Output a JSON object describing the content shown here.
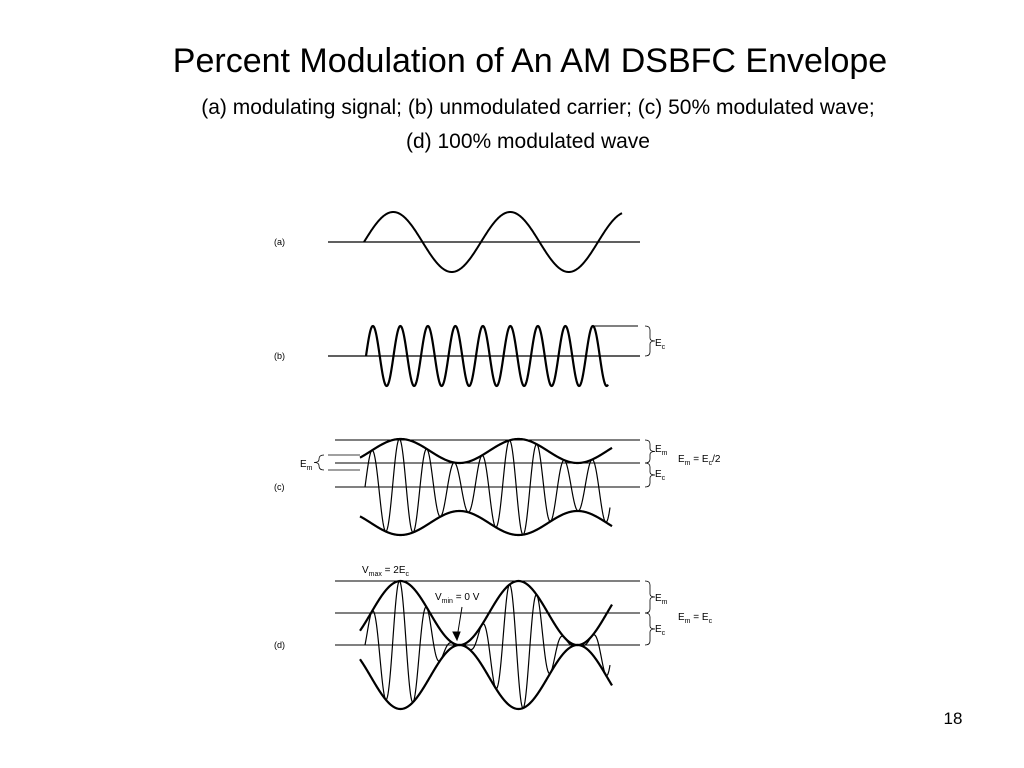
{
  "header": {
    "title": "Percent Modulation of An AM DSBFC Envelope",
    "subtitle": [
      "(a) modulating signal; (b) unmodulated carrier; (c) 50% modulated wave;",
      "(d) 100% modulated wave"
    ]
  },
  "figure": {
    "panels": [
      "(a)",
      "(b)",
      "(c)",
      "(d)"
    ],
    "annotations": {
      "b_ec": [
        "E",
        "c"
      ],
      "c_em_left": [
        "E",
        "m"
      ],
      "c_em": [
        "E",
        "m"
      ],
      "c_ec": [
        "E",
        "c"
      ],
      "c_relation": [
        "E",
        "m",
        " = E",
        "c",
        "/2"
      ],
      "d_vmax": [
        "V",
        "max",
        " = 2E",
        "c"
      ],
      "d_vmin": [
        "V",
        "min",
        " = 0 V"
      ],
      "d_em": [
        "E",
        "m"
      ],
      "d_ec": [
        "E",
        "c"
      ],
      "d_relation": [
        "E",
        "m",
        " = E",
        "c"
      ]
    }
  },
  "footer": {
    "page": "18"
  }
}
